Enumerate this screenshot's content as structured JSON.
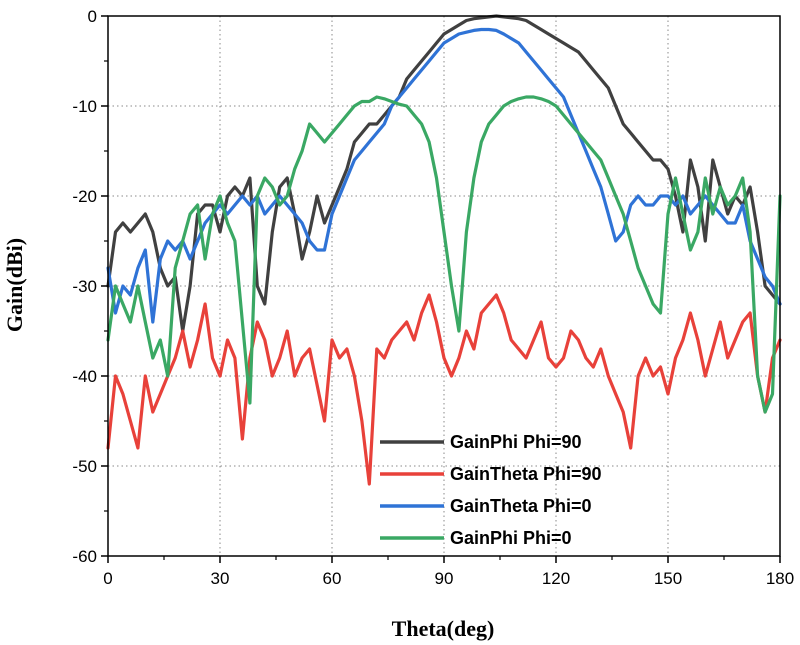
{
  "chart_data": {
    "type": "line",
    "title": "",
    "xlabel": "Theta(deg)",
    "ylabel": "Gain(dBi)",
    "xlim": [
      0,
      180
    ],
    "ylim": [
      -60,
      0
    ],
    "xticks": [
      0,
      30,
      60,
      90,
      120,
      150,
      180
    ],
    "xtick_labels": [
      "0",
      "30",
      "60",
      "90",
      "120",
      "150",
      "180"
    ],
    "yticks": [
      0,
      -10,
      -20,
      -30,
      -40,
      -50,
      -60
    ],
    "ytick_labels": [
      "0",
      "-10",
      "-20",
      "-30",
      "-40",
      "-50",
      "-60"
    ],
    "grid": true,
    "legend_position": "bottom-right",
    "series": [
      {
        "name": "GainPhi Phi=90",
        "color": "#404040",
        "x": [
          0,
          2,
          4,
          6,
          8,
          10,
          12,
          14,
          16,
          18,
          20,
          22,
          24,
          26,
          28,
          30,
          32,
          34,
          36,
          38,
          40,
          42,
          44,
          46,
          48,
          50,
          52,
          54,
          56,
          58,
          60,
          62,
          64,
          66,
          68,
          70,
          72,
          74,
          76,
          78,
          80,
          82,
          84,
          86,
          88,
          90,
          92,
          94,
          96,
          98,
          100,
          102,
          104,
          106,
          108,
          110,
          112,
          114,
          116,
          118,
          120,
          122,
          124,
          126,
          128,
          130,
          132,
          134,
          136,
          138,
          140,
          142,
          144,
          146,
          148,
          150,
          152,
          154,
          156,
          158,
          160,
          162,
          164,
          166,
          168,
          170,
          172,
          174,
          176,
          178,
          180
        ],
        "values": [
          -30,
          -24,
          -23,
          -24,
          -23,
          -22,
          -24,
          -28,
          -30,
          -29,
          -35,
          -30,
          -22,
          -21,
          -21,
          -24,
          -20,
          -19,
          -20,
          -18,
          -30,
          -32,
          -24,
          -19,
          -18,
          -22,
          -27,
          -24,
          -20,
          -23,
          -21,
          -19,
          -17,
          -14,
          -13,
          -12,
          -12,
          -11,
          -10,
          -9,
          -7,
          -6,
          -5,
          -4,
          -3,
          -2,
          -1.5,
          -1,
          -0.5,
          -0.3,
          -0.2,
          -0.1,
          0,
          -0.1,
          -0.2,
          -0.3,
          -0.5,
          -1,
          -1.5,
          -2,
          -2.5,
          -3,
          -3.5,
          -4,
          -5,
          -6,
          -7,
          -8,
          -10,
          -12,
          -13,
          -14,
          -15,
          -16,
          -16,
          -17,
          -20,
          -24,
          -16,
          -19,
          -25,
          -16,
          -19,
          -22,
          -20,
          -21,
          -19,
          -24,
          -30,
          -31,
          -32
        ]
      },
      {
        "name": "GainTheta Phi=90",
        "color": "#e8413a",
        "x": [
          0,
          2,
          4,
          6,
          8,
          10,
          12,
          14,
          16,
          18,
          20,
          22,
          24,
          26,
          28,
          30,
          32,
          34,
          36,
          38,
          40,
          42,
          44,
          46,
          48,
          50,
          52,
          54,
          56,
          58,
          60,
          62,
          64,
          66,
          68,
          70,
          72,
          74,
          76,
          78,
          80,
          82,
          84,
          86,
          88,
          90,
          92,
          94,
          96,
          98,
          100,
          102,
          104,
          106,
          108,
          110,
          112,
          114,
          116,
          118,
          120,
          122,
          124,
          126,
          128,
          130,
          132,
          134,
          136,
          138,
          140,
          142,
          144,
          146,
          148,
          150,
          152,
          154,
          156,
          158,
          160,
          162,
          164,
          166,
          168,
          170,
          172,
          174,
          176,
          178,
          180
        ],
        "values": [
          -48,
          -40,
          -42,
          -45,
          -48,
          -40,
          -44,
          -42,
          -40,
          -38,
          -35,
          -39,
          -36,
          -32,
          -38,
          -40,
          -36,
          -38,
          -47,
          -38,
          -34,
          -36,
          -40,
          -38,
          -35,
          -40,
          -38,
          -37,
          -41,
          -45,
          -36,
          -38,
          -37,
          -40,
          -45,
          -52,
          -37,
          -38,
          -36,
          -35,
          -34,
          -36,
          -33,
          -31,
          -34,
          -38,
          -40,
          -38,
          -35,
          -37,
          -33,
          -32,
          -31,
          -33,
          -36,
          -37,
          -38,
          -36,
          -34,
          -38,
          -39,
          -38,
          -35,
          -36,
          -38,
          -39,
          -37,
          -40,
          -42,
          -44,
          -48,
          -40,
          -38,
          -40,
          -39,
          -42,
          -38,
          -36,
          -33,
          -36,
          -40,
          -37,
          -34,
          -38,
          -36,
          -34,
          -33,
          -40,
          -44,
          -38,
          -36
        ]
      },
      {
        "name": "GainTheta Phi=0",
        "color": "#2f73d6",
        "x": [
          0,
          2,
          4,
          6,
          8,
          10,
          12,
          14,
          16,
          18,
          20,
          22,
          24,
          26,
          28,
          30,
          32,
          34,
          36,
          38,
          40,
          42,
          44,
          46,
          48,
          50,
          52,
          54,
          56,
          58,
          60,
          62,
          64,
          66,
          68,
          70,
          72,
          74,
          76,
          78,
          80,
          82,
          84,
          86,
          88,
          90,
          92,
          94,
          96,
          98,
          100,
          102,
          104,
          106,
          108,
          110,
          112,
          114,
          116,
          118,
          120,
          122,
          124,
          126,
          128,
          130,
          132,
          134,
          136,
          138,
          140,
          142,
          144,
          146,
          148,
          150,
          152,
          154,
          156,
          158,
          160,
          162,
          164,
          166,
          168,
          170,
          172,
          174,
          176,
          178,
          180
        ],
        "values": [
          -28,
          -33,
          -30,
          -31,
          -28,
          -26,
          -34,
          -27,
          -25,
          -26,
          -25,
          -27,
          -25,
          -23,
          -22,
          -21,
          -22,
          -21,
          -20,
          -21,
          -20,
          -22,
          -21,
          -20,
          -21,
          -22,
          -23,
          -25,
          -26,
          -26,
          -22,
          -20,
          -18,
          -16,
          -15,
          -14,
          -13,
          -12,
          -10,
          -9,
          -8,
          -7,
          -6,
          -5,
          -4,
          -3,
          -2.5,
          -2,
          -1.8,
          -1.6,
          -1.5,
          -1.5,
          -1.6,
          -2,
          -2.5,
          -3,
          -4,
          -5,
          -6,
          -7,
          -8,
          -9,
          -11,
          -13,
          -15,
          -17,
          -19,
          -22,
          -25,
          -24,
          -21,
          -20,
          -21,
          -21,
          -20,
          -20,
          -21,
          -20,
          -22,
          -21,
          -20,
          -21,
          -22,
          -23,
          -23,
          -21,
          -25,
          -27,
          -29,
          -30,
          -32
        ]
      },
      {
        "name": "GainPhi Phi=0",
        "color": "#3aa864",
        "x": [
          0,
          2,
          4,
          6,
          8,
          10,
          12,
          14,
          16,
          18,
          20,
          22,
          24,
          26,
          28,
          30,
          32,
          34,
          36,
          38,
          40,
          42,
          44,
          46,
          48,
          50,
          52,
          54,
          56,
          58,
          60,
          62,
          64,
          66,
          68,
          70,
          72,
          74,
          76,
          78,
          80,
          82,
          84,
          86,
          88,
          90,
          92,
          94,
          96,
          98,
          100,
          102,
          104,
          106,
          108,
          110,
          112,
          114,
          116,
          118,
          120,
          122,
          124,
          126,
          128,
          130,
          132,
          134,
          136,
          138,
          140,
          142,
          144,
          146,
          148,
          150,
          152,
          154,
          156,
          158,
          160,
          162,
          164,
          166,
          168,
          170,
          172,
          174,
          176,
          178,
          180
        ],
        "values": [
          -36,
          -30,
          -32,
          -34,
          -30,
          -34,
          -38,
          -36,
          -40,
          -28,
          -25,
          -22,
          -21,
          -27,
          -22,
          -20,
          -23,
          -25,
          -34,
          -43,
          -20,
          -18,
          -19,
          -21,
          -20,
          -17,
          -15,
          -12,
          -13,
          -14,
          -13,
          -12,
          -11,
          -10,
          -9.5,
          -9.5,
          -9,
          -9.2,
          -9.5,
          -9.8,
          -10,
          -11,
          -12,
          -14,
          -18,
          -24,
          -30,
          -35,
          -24,
          -18,
          -14,
          -12,
          -11,
          -10,
          -9.5,
          -9.2,
          -9,
          -9,
          -9.2,
          -9.5,
          -10,
          -11,
          -12,
          -13,
          -14,
          -15,
          -16,
          -18,
          -20,
          -22,
          -25,
          -28,
          -30,
          -32,
          -33,
          -22,
          -18,
          -22,
          -26,
          -24,
          -18,
          -22,
          -19,
          -21,
          -20,
          -18,
          -24,
          -40,
          -44,
          -42,
          -20
        ]
      }
    ]
  }
}
